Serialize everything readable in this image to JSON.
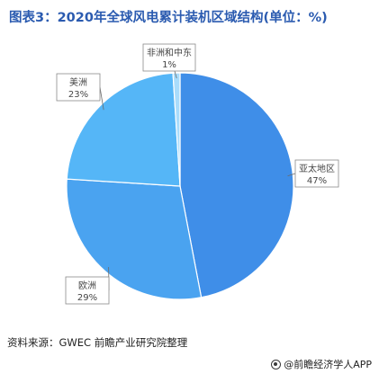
{
  "header": {
    "title": "图表3：2020年全球风电累计装机区域结构(单位：%)"
  },
  "chart_data": {
    "type": "pie",
    "title": "图表3：2020年全球风电累计装机区域结构(单位：%)",
    "slices": [
      {
        "label": "亚太地区",
        "value": 47,
        "value_label": "47%",
        "color": "#3f8ee8"
      },
      {
        "label": "欧洲",
        "value": 29,
        "value_label": "29%",
        "color": "#4aa3f0"
      },
      {
        "label": "美洲",
        "value": 23,
        "value_label": "23%",
        "color": "#55b6f7"
      },
      {
        "label": "非洲和中东",
        "value": 1,
        "value_label": "1%",
        "color": "#a9dcfb"
      }
    ]
  },
  "footer": {
    "source": "资料来源：GWEC 前瞻产业研究院整理",
    "brand": "@前瞻经济学人APP"
  }
}
